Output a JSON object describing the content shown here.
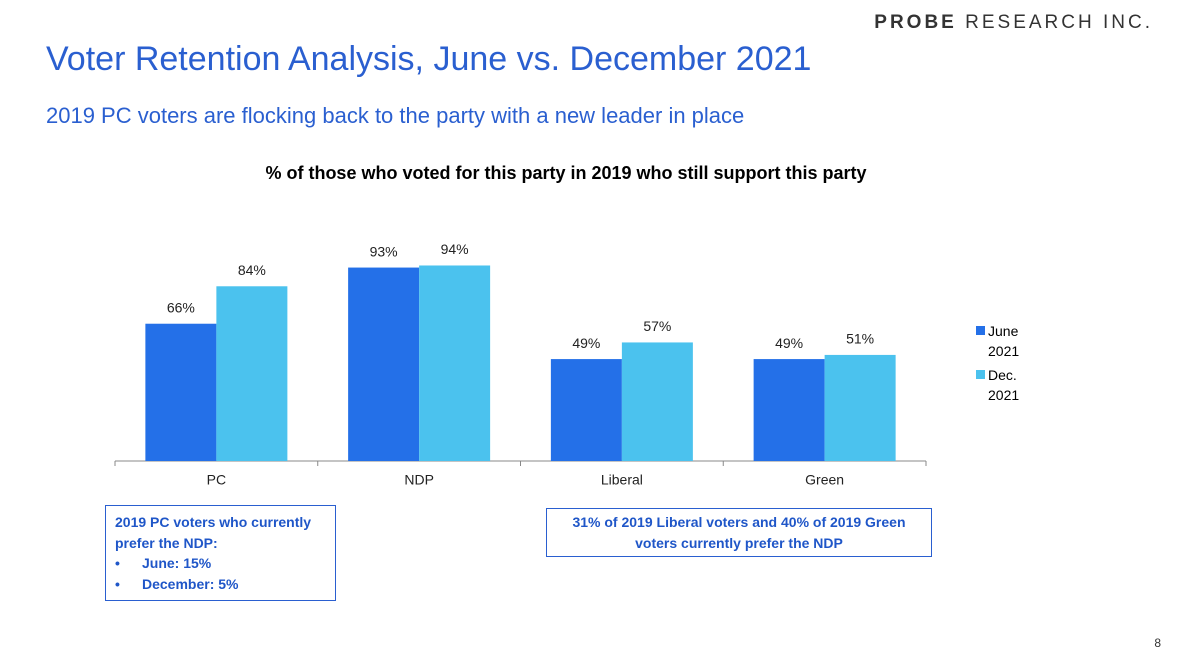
{
  "header": {
    "logo": {
      "brand": "PROBE",
      "rest": "RESEARCH INC."
    },
    "title": "Voter Retention Analysis, June vs. December 2021",
    "subtitle": "2019 PC voters are flocking back to the party with a new leader in place"
  },
  "chart_data": {
    "type": "bar",
    "title": "% of those who voted for this party in 2019 who still support this party",
    "categories": [
      "PC",
      "NDP",
      "Liberal",
      "Green"
    ],
    "series": [
      {
        "name": "June 2021",
        "color": "#2470e8",
        "values": [
          66,
          93,
          49,
          49
        ],
        "value_labels": [
          "66%",
          "93%",
          "49%",
          "49%"
        ]
      },
      {
        "name": "Dec. 2021",
        "color": "#4bc2ee",
        "values": [
          84,
          94,
          57,
          51
        ],
        "value_labels": [
          "84%",
          "94%",
          "57%",
          "51%"
        ]
      }
    ],
    "legend": "right"
  },
  "annotations": {
    "left": {
      "heading": "2019 PC voters who currently prefer the NDP:",
      "items": [
        "June: 15%",
        "December: 5%"
      ]
    },
    "right": "31% of 2019 Liberal voters and 40% of 2019 Green voters currently prefer the NDP"
  },
  "page_number": "8"
}
